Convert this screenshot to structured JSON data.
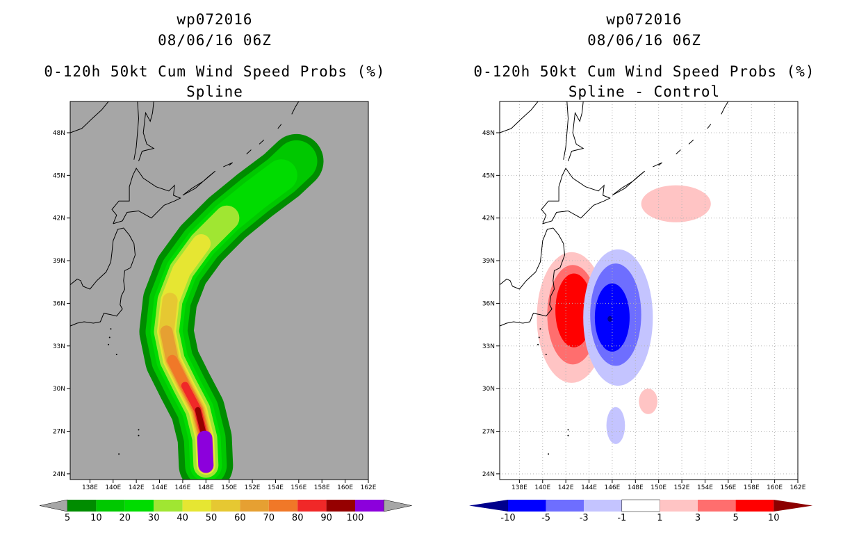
{
  "chart_data": [
    {
      "type": "heatmap",
      "title_lines": [
        "wp072016",
        "08/06/16 06Z",
        "0-120h 50kt Cum Wind Speed Probs (%)",
        "Spline"
      ],
      "x_ticks": [
        "138E",
        "140E",
        "142E",
        "144E",
        "146E",
        "148E",
        "150E",
        "152E",
        "154E",
        "156E",
        "158E",
        "160E",
        "162E"
      ],
      "y_ticks": [
        "48N",
        "45N",
        "42N",
        "39N",
        "36N",
        "33N",
        "30N",
        "27N",
        "24N"
      ],
      "xlim": [
        136.3,
        162
      ],
      "ylim": [
        23.6,
        50.2
      ],
      "background": "#a6a6a6",
      "colorbar": {
        "labels": [
          "5",
          "10",
          "20",
          "30",
          "40",
          "50",
          "60",
          "70",
          "80",
          "90",
          "100"
        ],
        "colors": [
          "#008c00",
          "#00c800",
          "#00dc00",
          "#a0e632",
          "#e6e632",
          "#e6c832",
          "#e6a032",
          "#f07828",
          "#f02828",
          "#960000",
          "#8c00dc"
        ]
      },
      "description": "Cumulative 50kt wind speed probability swath along a recurving track from ~24N 148E north-northwest then northeast to ~46N 156E"
    },
    {
      "type": "heatmap",
      "title_lines": [
        "wp072016",
        "08/06/16 06Z",
        "0-120h 50kt Cum Wind Speed Probs (%)",
        "Spline - Control"
      ],
      "x_ticks": [
        "138E",
        "140E",
        "142E",
        "144E",
        "146E",
        "148E",
        "150E",
        "152E",
        "154E",
        "156E",
        "158E",
        "160E",
        "162E"
      ],
      "y_ticks": [
        "48N",
        "45N",
        "42N",
        "39N",
        "36N",
        "33N",
        "30N",
        "27N",
        "24N"
      ],
      "xlim": [
        136.3,
        162
      ],
      "ylim": [
        23.6,
        50.2
      ],
      "background": "#ffffff",
      "colorbar": {
        "labels": [
          "-10",
          "-5",
          "-3",
          "-1",
          "1",
          "3",
          "5",
          "10"
        ],
        "colors": [
          "#00008c",
          "#0000ff",
          "#6e6eff",
          "#c4c4ff",
          "#ffffff",
          "#ffc4c4",
          "#ff6e6e",
          "#ff0000",
          "#8c0000"
        ]
      },
      "description": "Difference field: positive dipole near 35N 142E, negative dipole near 35N 146E, weak positive anomalies near 43N 152E and 29N 149E"
    }
  ]
}
